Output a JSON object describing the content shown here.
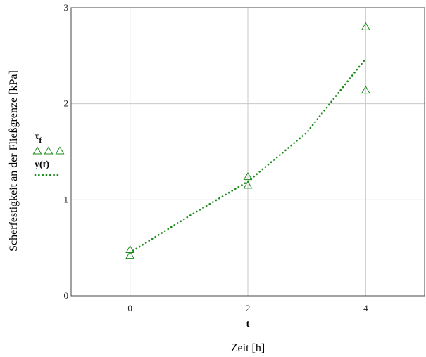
{
  "chart_data": {
    "type": "scatter",
    "xlabel_var": "t",
    "xlabel": "Zeit [h]",
    "ylabel": "Scherfestigkeit an der Fließgrenze [kPa]",
    "xlim": [
      -1,
      5
    ],
    "ylim": [
      0,
      3
    ],
    "xticks": [
      0,
      2,
      4
    ],
    "yticks": [
      0,
      1,
      2,
      3
    ],
    "grid": true,
    "legend_position": "left",
    "series": [
      {
        "name": "τf",
        "legend_main": "τ",
        "legend_sub": "f",
        "kind": "markers",
        "marker": "triangle-open",
        "color": "#1a8a1a",
        "points": [
          {
            "x": 0,
            "y": 0.48
          },
          {
            "x": 0,
            "y": 0.42
          },
          {
            "x": 2,
            "y": 1.24
          },
          {
            "x": 2,
            "y": 1.15
          },
          {
            "x": 4,
            "y": 2.8
          },
          {
            "x": 4,
            "y": 2.14
          }
        ]
      },
      {
        "name": "y(t)",
        "kind": "dotted-line",
        "color": "#1a8a1a",
        "points": [
          {
            "x": 0,
            "y": 0.45
          },
          {
            "x": 1,
            "y": 0.83
          },
          {
            "x": 2,
            "y": 1.19
          },
          {
            "x": 3,
            "y": 1.7
          },
          {
            "x": 4,
            "y": 2.47
          }
        ]
      }
    ]
  }
}
